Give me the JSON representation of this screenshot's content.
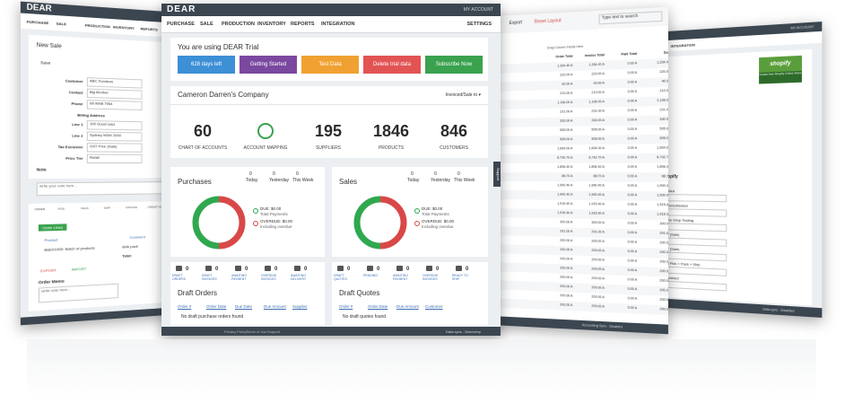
{
  "main": {
    "logo": "DEAR",
    "account": "MY ACCOUNT",
    "settings": "SETTINGS",
    "nav": [
      "PURCHASE",
      "SALE",
      "PRODUCTION",
      "INVENTORY",
      "REPORTS",
      "INTEGRATION"
    ],
    "trial_title": "You are using DEAR Trial",
    "buttons": [
      "628 days left",
      "Getting Started",
      "Test Data",
      "Delete trial data",
      "Subscribe Now"
    ],
    "company": "Cameron Darren's Company",
    "company_filter": "Invoiced/Sale to ▾",
    "stats": [
      {
        "value": "60",
        "label": "CHART OF ACCOUNTS"
      },
      {
        "value": "",
        "label": "ACCOUNT MAPPING"
      },
      {
        "value": "195",
        "label": "SUPPLIERS"
      },
      {
        "value": "1846",
        "label": "PRODUCTS"
      },
      {
        "value": "846",
        "label": "CUSTOMERS"
      }
    ],
    "purchases": {
      "title": "Purchases",
      "periods": [
        "Today",
        "Yesterday",
        "This Week"
      ],
      "counts": [
        "0",
        "0",
        "0"
      ],
      "due": "DUE: $0.00",
      "due_sub": "Total Payments",
      "overdue": "OVERDUE: $0.00",
      "overdue_sub": "Including overdue"
    },
    "sales": {
      "title": "Sales",
      "periods": [
        "Today",
        "Yesterday",
        "This Week"
      ],
      "counts": [
        "0",
        "0",
        "0"
      ],
      "due": "DUE: $0.00",
      "due_sub": "Total Payments",
      "overdue": "OVERDUE: $0.00",
      "overdue_sub": "Including overdue"
    },
    "purchase_icons": [
      {
        "label": "DRAFT ORDERS",
        "count": "0"
      },
      {
        "label": "DRAFT INVOICES",
        "count": "0"
      },
      {
        "label": "AWAITING PAYMENT",
        "count": "0"
      },
      {
        "label": "OVERDUE INVOICES",
        "count": "0"
      },
      {
        "label": "AWAITING DELIVERY",
        "count": "0"
      }
    ],
    "sale_icons": [
      {
        "label": "DRAFT QUOTES",
        "count": "0"
      },
      {
        "label": "PENDING",
        "count": "0"
      },
      {
        "label": "AWAITING PAYMENT",
        "count": "0"
      },
      {
        "label": "OVERDUE INVOICES",
        "count": "0"
      },
      {
        "label": "READY TO SHIP",
        "count": "0"
      }
    ],
    "draft_orders": {
      "title": "Draft Orders",
      "columns": [
        "Order #",
        "Order Date",
        "Due Date",
        "Due Amount",
        "Supplier"
      ],
      "empty": "No draft purchase orders found"
    },
    "draft_quotes": {
      "title": "Draft Quotes",
      "columns": [
        "Order #",
        "Order Date",
        "Due Amount",
        "Customer"
      ],
      "empty": "No draft quotes found"
    },
    "support": "Support",
    "footer": [
      "Privacy Policy",
      "Terms of Use",
      "Support"
    ],
    "footer_right": "Data sync - Discovery"
  },
  "left": {
    "logo": "DEAR",
    "nav": [
      "PURCHASE",
      "SALE",
      "PRODUCTION",
      "INVENTORY",
      "REPORTS"
    ],
    "title": "New Sale",
    "save": "Save",
    "fields": [
      [
        "Customer",
        "ABC Furniture"
      ],
      [
        "Contact",
        "Big Brother"
      ],
      [
        "Phone",
        "08 9998 7954"
      ],
      [
        "Line 1",
        "100 Good road"
      ],
      [
        "Line 2",
        "Sydney NSW 2000"
      ],
      [
        "Tax Exclusive",
        "GST Free (Sale)"
      ],
      [
        "Price Tier",
        "Retail"
      ]
    ],
    "billing": "Billing Address",
    "note": "Note",
    "note_placeholder": "write your note here...",
    "tabs": [
      "ORDER",
      "PICK",
      "PACK",
      "SHIP",
      "INVOICE",
      "CREDIT NOTE"
    ],
    "order_lines": "Order Lines",
    "columns": [
      "Product",
      "Comment"
    ],
    "line": "Batch1000: Batch of products",
    "line_comment": "Bulk pack",
    "total": "Total:",
    "export": "EXPORT",
    "import": "IMPORT",
    "memo": "Order Memo",
    "memo_placeholder": "write note here..."
  },
  "right": {
    "export": "Export",
    "reset": "Reset Layout",
    "search": "Type text to search",
    "drag": "Drag Column Fields Here",
    "columns": [
      "Order Total",
      "Invoice Total",
      "Paid Total",
      "Due"
    ],
    "rows": [
      [
        "1,334.40 A",
        "1,334.40 A",
        "0.00 A",
        "1,334.40"
      ],
      [
        "220.00 A",
        "220.00 A",
        "0.00 A",
        "220.00"
      ],
      [
        "40.00 A",
        "40.00 A",
        "0.00 A",
        "40.00"
      ],
      [
        "210.00 A",
        "210.00 A",
        "0.00 A",
        "210.00"
      ],
      [
        "1,106.00 A",
        "1,106.00 A",
        "0.00 A",
        "1,106.00"
      ],
      [
        "231.00 A",
        "231.00 A",
        "0.00 A",
        "231.00"
      ],
      [
        "330.00 A",
        "330.00 A",
        "0.00 A",
        "330.00"
      ],
      [
        "505.00 A",
        "505.00 A",
        "0.00 A",
        "505.00"
      ],
      [
        "505.00 A",
        "505.00 A",
        "0.00 A",
        "505.00"
      ],
      [
        "1,604.00 A",
        "1,604.00 A",
        "0.00 A",
        "1,604.00"
      ],
      [
        "6,742.70 A",
        "6,742.70 A",
        "0.00 A",
        "6,742.70"
      ],
      [
        "1,806.40 A",
        "1,806.40 A",
        "0.00 A",
        "1,806.40"
      ],
      [
        "88.70 A",
        "88.70 A",
        "0.00 A",
        "88.70"
      ],
      [
        "1,900.40 A",
        "1,900.40 A",
        "0.00 A",
        "1,900.40"
      ],
      [
        "1,900.40 A",
        "1,900.40 A",
        "0.00 A",
        "1,900.40"
      ],
      [
        "1,915.40 A",
        "1,915.40 A",
        "0.00 A",
        "1,915.40"
      ],
      [
        "1,915.40 A",
        "1,915.40 A",
        "0.00 A",
        "1,915.40"
      ],
      [
        "300.00 A",
        "300.00 A",
        "0.00 A",
        "300.00"
      ],
      [
        "291.00 A",
        "291.00 A",
        "0.00 A",
        "291.00"
      ],
      [
        "200.00 A",
        "200.00 A",
        "0.00 A",
        "200.00"
      ],
      [
        "200.00 A",
        "200.00 A",
        "0.00 A",
        "200.00"
      ],
      [
        "200.00 A",
        "200.00 A",
        "0.00 A",
        "200.00"
      ],
      [
        "200.00 A",
        "200.00 A",
        "0.00 A",
        "200.00"
      ],
      [
        "200.00 A",
        "200.00 A",
        "0.00 A",
        "200.00"
      ],
      [
        "200.00 A",
        "200.00 A",
        "0.00 A",
        "200.00"
      ],
      [
        "200.00 A",
        "200.00 A",
        "0.00 A",
        "200.00"
      ],
      [
        "200.00 A",
        "200.00 A",
        "0.00 A",
        "200.00"
      ]
    ],
    "footer": "Accounting Sync - Disabled"
  },
  "far_right": {
    "account": "MY ACCOUNT",
    "nav": "INTEGRATION",
    "shopify": "shopify",
    "create": "Create free Shopify Online Store",
    "labels": [
      "Shopify",
      "Enabled",
      "No consolidation",
      "Online Shop Testing",
      "GST (Sale)",
      "GST (Sale)",
      "Auto Pick + Pack + Ship",
      "Authorised"
    ],
    "footer": "Data sync - Disabled"
  }
}
